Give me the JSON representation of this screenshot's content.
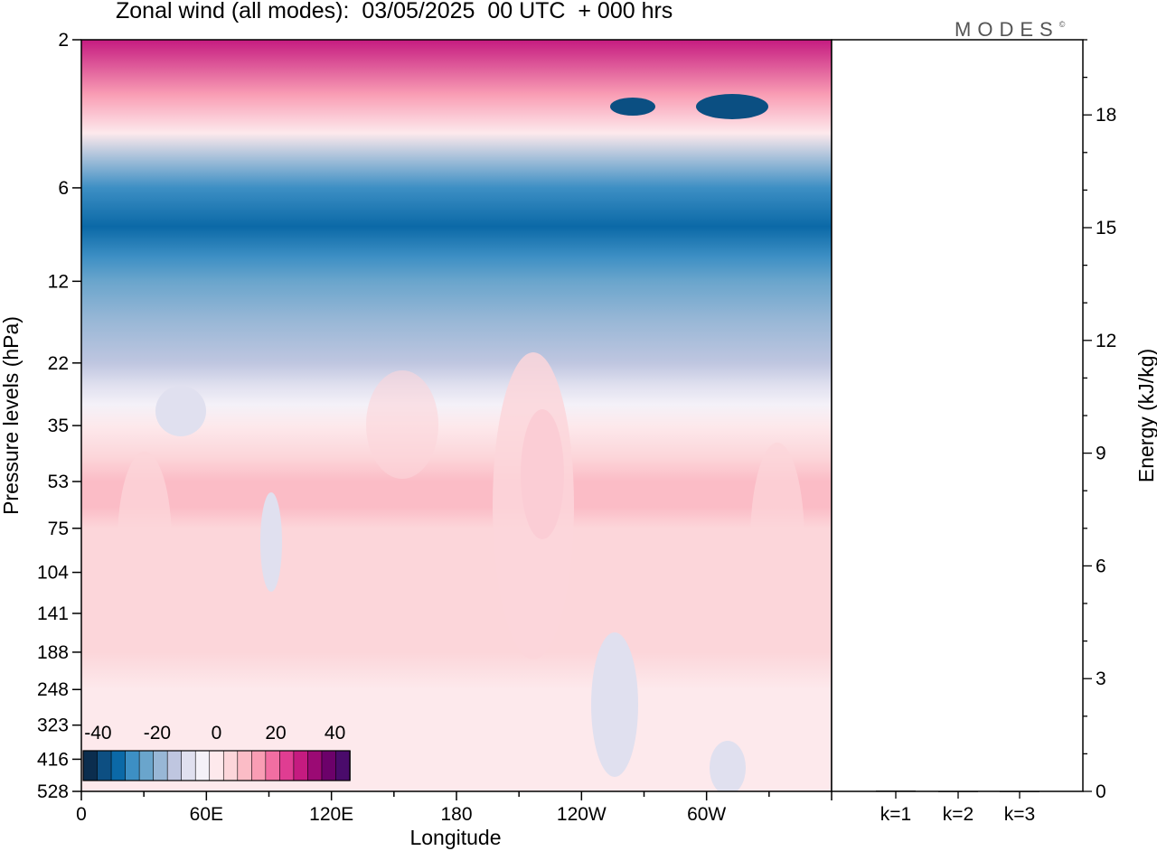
{
  "brand": "MODES",
  "brand_mark": "©",
  "chart_data": [
    {
      "type": "heatmap",
      "title": "Zonal wind (all modes):  03/05/2025  00 UTC  + 000 hrs",
      "xlabel": "Longitude",
      "ylabel": "Pressure levels (hPa)",
      "x_ticks": [
        "0",
        "60E",
        "120E",
        "180",
        "120W",
        "60W"
      ],
      "y_ticks": [
        "2",
        "6",
        "12",
        "22",
        "35",
        "53",
        "75",
        "104",
        "141",
        "188",
        "248",
        "323",
        "416",
        "528"
      ],
      "y_scale": "log-pressure",
      "legend": {
        "position": "bottom-left",
        "tick_labels": [
          "-40",
          "-20",
          "0",
          "20",
          "40"
        ],
        "range": [
          -45,
          45
        ],
        "colors": [
          "#0b2d4e",
          "#0d4f82",
          "#0b69a7",
          "#3d8fc4",
          "#6aa5cc",
          "#98b7d6",
          "#bfc6e0",
          "#e0e0ef",
          "#f4f1f8",
          "#fde9ec",
          "#fcd6da",
          "#fbbcc6",
          "#f99db4",
          "#f26ea2",
          "#e03d92",
          "#c51b80",
          "#9b0a74",
          "#6c016a",
          "#4a0b6b"
        ]
      },
      "profile": {
        "levels": [
          "2",
          "3",
          "4",
          "6",
          "8",
          "10",
          "12",
          "16",
          "22",
          "26",
          "30",
          "35",
          "44",
          "53",
          "64",
          "75",
          "104",
          "141",
          "188",
          "248",
          "323",
          "416",
          "528"
        ],
        "u": [
          30,
          14,
          0,
          -30,
          -32,
          -28,
          -26,
          -20,
          -16,
          -10,
          -6,
          0,
          6,
          9,
          8,
          5,
          4,
          4,
          3,
          1,
          0,
          0,
          0
        ]
      }
    },
    {
      "type": "bar",
      "ylabel": "Energy (kJ/kg)",
      "categories": [
        "k=1",
        "k=2",
        "k=3"
      ],
      "values": [
        0.02,
        0.01,
        0.01
      ],
      "ylim": [
        0,
        20
      ],
      "y_ticks": [
        "0",
        "3",
        "6",
        "9",
        "12",
        "15",
        "18"
      ]
    }
  ]
}
